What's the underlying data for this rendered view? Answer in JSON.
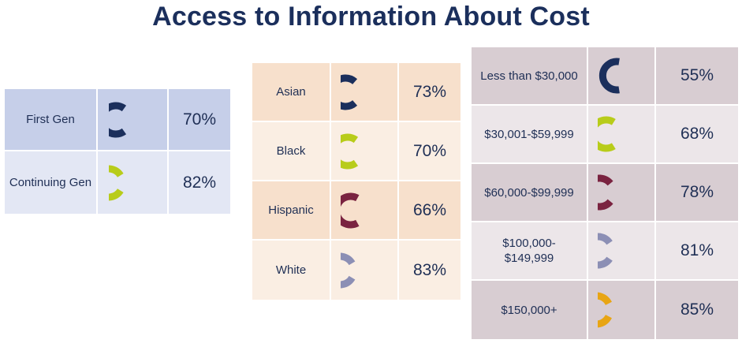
{
  "title": "Access to Information About Cost",
  "colors": {
    "navy": "#1b2f5c",
    "lime": "#b8cc1a",
    "maroon": "#7a2340",
    "lavender": "#8c8fb5",
    "gold": "#e8a514"
  },
  "chart_data": [
    {
      "type": "table",
      "rows": [
        {
          "label": "First Gen",
          "value": 70,
          "display": "70%",
          "color": "#1b2f5c"
        },
        {
          "label": "Continuing Gen",
          "value": 82,
          "display": "82%",
          "color": "#b8cc1a"
        }
      ]
    },
    {
      "type": "table",
      "rows": [
        {
          "label": "Asian",
          "value": 73,
          "display": "73%",
          "color": "#1b2f5c"
        },
        {
          "label": "Black",
          "value": 70,
          "display": "70%",
          "color": "#b8cc1a"
        },
        {
          "label": "Hispanic",
          "value": 66,
          "display": "66%",
          "color": "#7a2340"
        },
        {
          "label": "White",
          "value": 83,
          "display": "83%",
          "color": "#8c8fb5"
        }
      ]
    },
    {
      "type": "table",
      "rows": [
        {
          "label": "Less than $30,000",
          "value": 55,
          "display": "55%",
          "color": "#1b2f5c"
        },
        {
          "label": "$30,001-$59,999",
          "value": 68,
          "display": "68%",
          "color": "#b8cc1a"
        },
        {
          "label": "$60,000-$99,999",
          "value": 78,
          "display": "78%",
          "color": "#7a2340"
        },
        {
          "label": "$100,000-\n$149,999",
          "value": 81,
          "display": "81%",
          "color": "#8c8fb5"
        },
        {
          "label": "$150,000+",
          "value": 85,
          "display": "85%",
          "color": "#e8a514"
        }
      ]
    }
  ]
}
